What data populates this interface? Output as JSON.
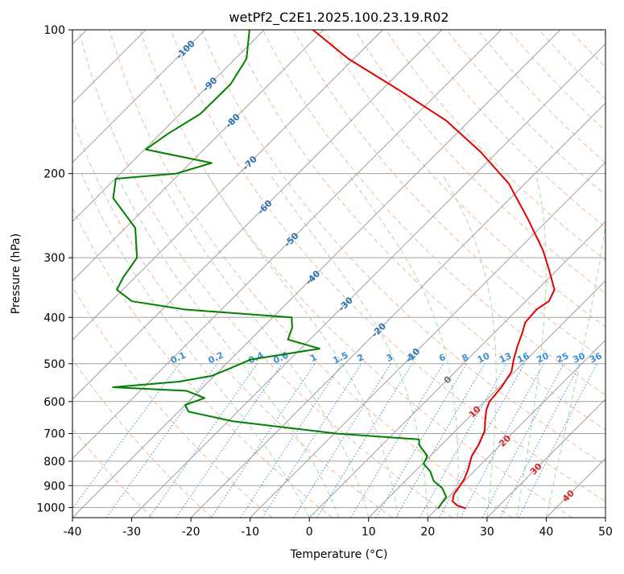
{
  "chart_data": {
    "type": "line",
    "title": "wetPf2_C2E1.2025.100.23.19.R02",
    "xlabel": "Temperature (°C)",
    "ylabel": "Pressure (hPa)",
    "xlim": [
      -40,
      50
    ],
    "ylim": [
      1050,
      100
    ],
    "y_scale": "log",
    "grid": true,
    "x_ticks": [
      -40,
      -30,
      -20,
      -10,
      0,
      10,
      20,
      30,
      40,
      50
    ],
    "y_ticks": [
      100,
      200,
      300,
      400,
      500,
      600,
      700,
      800,
      900,
      1000
    ],
    "colors": {
      "temperature": "#e50000",
      "dewpoint": "#008000",
      "isotherm": "#a0a0a0",
      "dry_adiabat": "#f4a582",
      "moist_adiabat": "#9fd49f",
      "mixing_ratio": "#3a8fd6",
      "isotherm_label_cold": "#2a72b0",
      "isotherm_label_warm": "#d62728",
      "isotherm_label_zero": "#707070"
    },
    "series": [
      {
        "key": "temperature",
        "p": [
          1005,
          990,
          970,
          940,
          905,
          870,
          830,
          780,
          740,
          690,
          660,
          625,
          600,
          560,
          520,
          490,
          460,
          430,
          410,
          385,
          370,
          350,
          320,
          290,
          250,
          210,
          180,
          155,
          135,
          115,
          100
        ],
        "t": [
          24.9,
          22.9,
          21.4,
          20.5,
          20.1,
          19.6,
          18.6,
          17.0,
          16.3,
          14.9,
          13.4,
          11.7,
          10.8,
          10.4,
          9.5,
          7.8,
          6.2,
          4.7,
          3.5,
          3.2,
          3.9,
          2.9,
          -1.1,
          -5.6,
          -13.3,
          -22.7,
          -32.9,
          -43.9,
          -56.2,
          -70.9,
          -81.8
        ]
      },
      {
        "key": "dewpoint",
        "p": [
          1005,
          980,
          950,
          910,
          880,
          840,
          810,
          780,
          740,
          720,
          700,
          660,
          630,
          610,
          590,
          570,
          560,
          545,
          530,
          510,
          490,
          465,
          445,
          420,
          400,
          385,
          370,
          350,
          330,
          300,
          260,
          225,
          205,
          200,
          190,
          178,
          165,
          150,
          130,
          115,
          100
        ],
        "t": [
          20.2,
          19.9,
          19.6,
          17.4,
          14.8,
          12.6,
          10.2,
          9.5,
          6.3,
          5.3,
          -9.7,
          -29.1,
          -38.3,
          -40.0,
          -37.9,
          -42.1,
          -55.2,
          -44.9,
          -40.4,
          -38.5,
          -36.6,
          -26.8,
          -33.7,
          -35.0,
          -36.8,
          -56.2,
          -66.5,
          -71.0,
          -72.0,
          -73.0,
          -78.3,
          -87.1,
          -89.9,
          -80.6,
          -76.4,
          -89.8,
          -88.7,
          -86.6,
          -86.5,
          -88.1,
          -92.5
        ]
      }
    ],
    "mixing_ratio_lines": {
      "values_gkg": [
        0.1,
        0.2,
        0.4,
        0.6,
        1,
        1.5,
        2,
        3,
        4,
        6,
        8,
        10,
        13,
        16,
        20,
        25,
        30,
        36
      ],
      "labels": [
        "0.1",
        "0.2",
        "0.4",
        "0.6",
        "1",
        "1.5",
        "2",
        "3",
        "4",
        "6",
        "8",
        "10",
        "13",
        "16",
        "20",
        "25",
        "30",
        "36"
      ],
      "label_pressure": 500,
      "top_pressure": 500
    },
    "isotherm_labels": [
      {
        "text": "-100",
        "t": -100,
        "p": 110
      },
      {
        "text": "-90",
        "t": -90,
        "p": 130
      },
      {
        "text": "-80",
        "t": -80,
        "p": 155
      },
      {
        "text": "-70",
        "t": -70,
        "p": 190
      },
      {
        "text": "-60",
        "t": -60,
        "p": 235
      },
      {
        "text": "-50",
        "t": -50,
        "p": 275
      },
      {
        "text": "-40",
        "t": -40,
        "p": 330
      },
      {
        "text": "-30",
        "t": -30,
        "p": 375
      },
      {
        "text": "-20",
        "t": -20,
        "p": 425
      },
      {
        "text": "-10",
        "t": -10,
        "p": 480
      },
      {
        "text": "0",
        "t": 0,
        "p": 540
      },
      {
        "text": "10",
        "t": 10,
        "p": 630
      },
      {
        "text": "20",
        "t": 20,
        "p": 725
      },
      {
        "text": "30",
        "t": 30,
        "p": 830
      },
      {
        "text": "40",
        "t": 40,
        "p": 945
      }
    ],
    "dry_adiabat_thetas_c": [
      -30,
      -20,
      -10,
      0,
      10,
      20,
      30,
      40,
      50,
      60,
      70,
      80,
      90,
      100,
      110,
      120,
      130,
      140,
      150,
      160,
      170,
      180,
      190,
      200
    ],
    "moist_adiabat_starts_c": [
      0,
      5,
      10,
      15,
      20,
      25,
      30,
      35,
      40
    ],
    "skew": 1.0
  }
}
